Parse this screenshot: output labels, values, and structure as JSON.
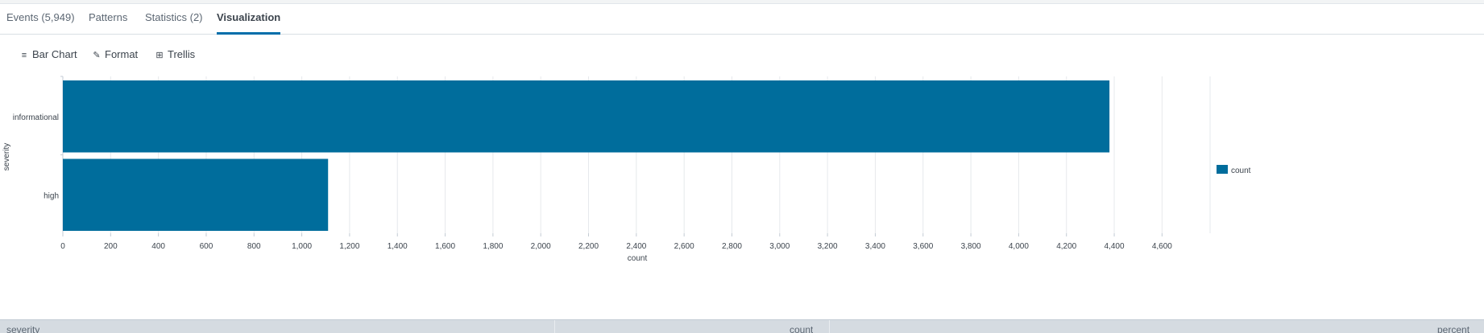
{
  "tabs": [
    {
      "label": "Events (5,949)"
    },
    {
      "label": "Patterns"
    },
    {
      "label": "Statistics (2)"
    },
    {
      "label": "Visualization"
    }
  ],
  "toolbar": {
    "bar_chart_label": "Bar Chart",
    "format_label": "Format",
    "trellis_label": "Trellis"
  },
  "chart_data": {
    "type": "bar",
    "orientation": "horizontal",
    "categories": [
      "informational",
      "high"
    ],
    "series": [
      {
        "name": "count",
        "values": [
          4380,
          1110
        ]
      }
    ],
    "xlabel": "count",
    "ylabel": "severity",
    "xlim": [
      0,
      4800
    ],
    "xticks": [
      "0",
      "200",
      "400",
      "600",
      "800",
      "1,000",
      "1,200",
      "1,400",
      "1,600",
      "1,800",
      "2,000",
      "2,200",
      "2,400",
      "2,600",
      "2,800",
      "3,000",
      "3,200",
      "3,400",
      "3,600",
      "3,800",
      "4,000",
      "4,200",
      "4,400",
      "4,600"
    ],
    "grid": true,
    "legend_position": "right",
    "bar_color": "#006d9c"
  },
  "results_table": {
    "columns": [
      "severity",
      "count",
      "percent"
    ]
  }
}
